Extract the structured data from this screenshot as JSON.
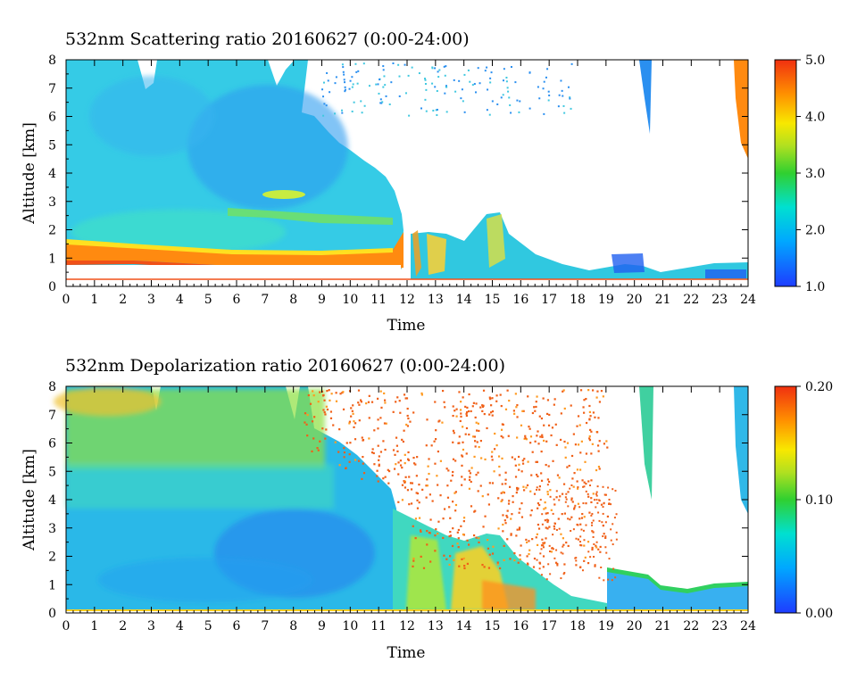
{
  "chart_data": [
    {
      "type": "heatmap",
      "title": "532nm Scattering ratio  20160627 (0:00-24:00)",
      "xlabel": "Time",
      "ylabel": "Altitude [km]",
      "xlim": [
        0,
        24
      ],
      "ylim": [
        0,
        8
      ],
      "x_ticks": [
        "0",
        "1",
        "2",
        "3",
        "4",
        "5",
        "6",
        "7",
        "8",
        "9",
        "10",
        "11",
        "12",
        "13",
        "14",
        "15",
        "16",
        "17",
        "18",
        "19",
        "20",
        "21",
        "22",
        "23",
        "24"
      ],
      "y_ticks": [
        "0",
        "1",
        "2",
        "3",
        "4",
        "5",
        "6",
        "7",
        "8"
      ],
      "colorbar": {
        "min": 1.0,
        "max": 5.0,
        "ticks": [
          "1.0",
          "2.0",
          "3.0",
          "4.0",
          "5.0"
        ]
      },
      "features": [
        {
          "time": [
            0,
            11.5
          ],
          "altitude": [
            0.4,
            1.1
          ],
          "value": 4.5
        },
        {
          "time": [
            0,
            11.5
          ],
          "altitude": [
            1.1,
            8.0
          ],
          "value": 2.0
        },
        {
          "time": [
            7,
            8.5
          ],
          "altitude": [
            2.9,
            3.3
          ],
          "value": 3.0
        },
        {
          "time": [
            5.5,
            11.5
          ],
          "altitude": [
            2.1,
            2.6
          ],
          "value": 2.5
        },
        {
          "time": [
            12,
            19
          ],
          "altitude": [
            0.2,
            2.6
          ],
          "value": 2.5
        },
        {
          "time": [
            19,
            24
          ],
          "altitude": [
            0.2,
            1.4
          ],
          "value": 1.7
        },
        {
          "time": [
            20.2,
            20.6
          ],
          "altitude": [
            5.4,
            8.0
          ],
          "value": 1.6
        },
        {
          "time": [
            23.6,
            24
          ],
          "altitude": [
            4.4,
            8.0
          ],
          "value": 2.5
        }
      ]
    },
    {
      "type": "heatmap",
      "title": "532nm Depolarization ratio  20160627 (0:00-24:00)",
      "xlabel": "Time",
      "ylabel": "Altitude [km]",
      "xlim": [
        0,
        24
      ],
      "ylim": [
        0,
        8
      ],
      "x_ticks": [
        "0",
        "1",
        "2",
        "3",
        "4",
        "5",
        "6",
        "7",
        "8",
        "9",
        "10",
        "11",
        "12",
        "13",
        "14",
        "15",
        "16",
        "17",
        "18",
        "19",
        "20",
        "21",
        "22",
        "23",
        "24"
      ],
      "y_ticks": [
        "0",
        "1",
        "2",
        "3",
        "4",
        "5",
        "6",
        "7",
        "8"
      ],
      "colorbar": {
        "min": 0.0,
        "max": 0.2,
        "ticks": [
          "0.00",
          "0.10",
          "0.20"
        ]
      },
      "features": [
        {
          "time": [
            0,
            11.5
          ],
          "altitude": [
            0.1,
            4.0
          ],
          "value": 0.03
        },
        {
          "time": [
            0,
            11.5
          ],
          "altitude": [
            4.0,
            8.0
          ],
          "value": 0.08
        },
        {
          "time": [
            11.5,
            19
          ],
          "altitude": [
            0.1,
            3.0
          ],
          "value": 0.1
        },
        {
          "time": [
            19,
            24
          ],
          "altitude": [
            0.1,
            1.6
          ],
          "value": 0.04
        },
        {
          "time": [
            11.5,
            21
          ],
          "altitude": [
            2.0,
            8.0
          ],
          "value": 0.18
        },
        {
          "time": [
            20.2,
            20.6
          ],
          "altitude": [
            3.7,
            8.0
          ],
          "value": 0.08
        },
        {
          "time": [
            23.6,
            24
          ],
          "altitude": [
            3.5,
            8.0
          ],
          "value": 0.06
        }
      ]
    }
  ]
}
